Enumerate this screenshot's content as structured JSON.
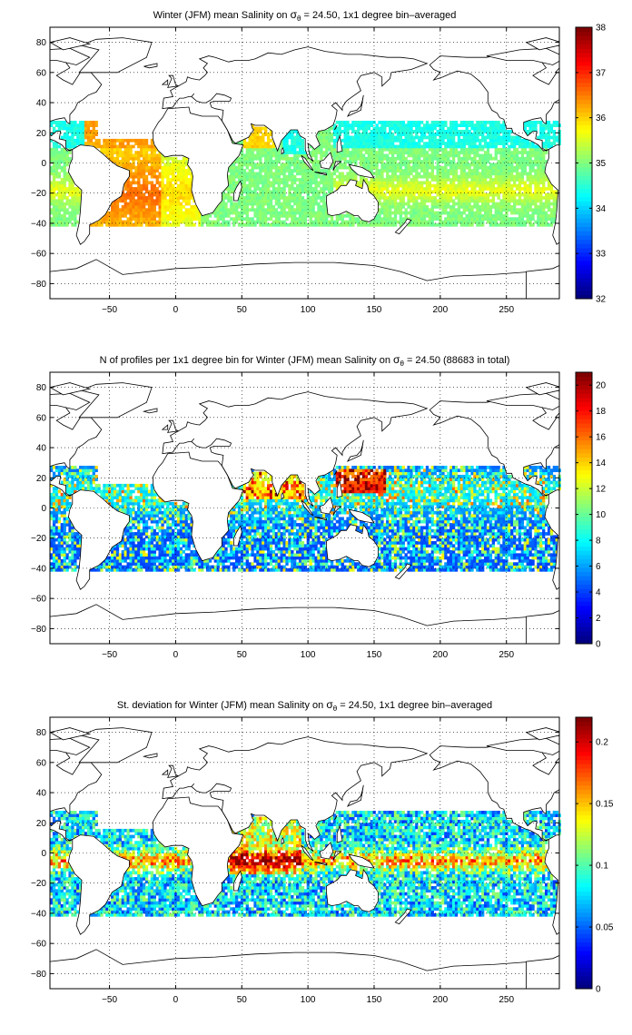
{
  "chart_data": [
    {
      "type": "heatmap",
      "title_parts": {
        "before": "Winter (JFM) mean Salinity on ",
        "sigma": "σ",
        "subscript": "θ",
        "after": " = 24.50, 1x1 degree bin–averaged"
      },
      "xlabel": "",
      "ylabel": "",
      "xlim": [
        -95,
        290
      ],
      "ylim": [
        -90,
        90
      ],
      "xticks": [
        -50,
        0,
        50,
        100,
        150,
        200,
        250
      ],
      "yticks": [
        -80,
        -60,
        -40,
        -20,
        0,
        20,
        40,
        60,
        80
      ],
      "grid": true,
      "colormap": "jet",
      "colorbar": {
        "range": [
          32,
          38
        ],
        "ticks": [
          32,
          33,
          34,
          35,
          36,
          37,
          38
        ]
      },
      "field": "salinity"
    },
    {
      "type": "heatmap",
      "title_parts": {
        "before": "N of profiles per 1x1 degree bin for Winter (JFM) mean Salinity on ",
        "sigma": "σ",
        "subscript": "θ",
        "after": " = 24.50 (88683 in total)"
      },
      "xlabel": "",
      "ylabel": "",
      "xlim": [
        -95,
        290
      ],
      "ylim": [
        -90,
        90
      ],
      "xticks": [
        -50,
        0,
        50,
        100,
        150,
        200,
        250
      ],
      "yticks": [
        -80,
        -60,
        -40,
        -20,
        0,
        20,
        40,
        60,
        80
      ],
      "grid": true,
      "colormap": "jet",
      "colorbar": {
        "range": [
          0,
          21
        ],
        "ticks": [
          0,
          2,
          4,
          6,
          8,
          10,
          12,
          14,
          16,
          18,
          20
        ]
      },
      "field": "count"
    },
    {
      "type": "heatmap",
      "title_parts": {
        "before": "St. deviation for Winter (JFM) mean Salinity on ",
        "sigma": "σ",
        "subscript": "θ",
        "after": " = 24.50, 1x1 degree bin–averaged"
      },
      "xlabel": "",
      "ylabel": "",
      "xlim": [
        -95,
        290
      ],
      "ylim": [
        -90,
        90
      ],
      "xticks": [
        -50,
        0,
        50,
        100,
        150,
        200,
        250
      ],
      "yticks": [
        -80,
        -60,
        -40,
        -20,
        0,
        20,
        40,
        60,
        80
      ],
      "grid": true,
      "colormap": "jet",
      "colorbar": {
        "range": [
          0,
          0.22
        ],
        "ticks": [
          0,
          0.05,
          0.1,
          0.15,
          0.2
        ]
      },
      "field": "stdev"
    }
  ]
}
